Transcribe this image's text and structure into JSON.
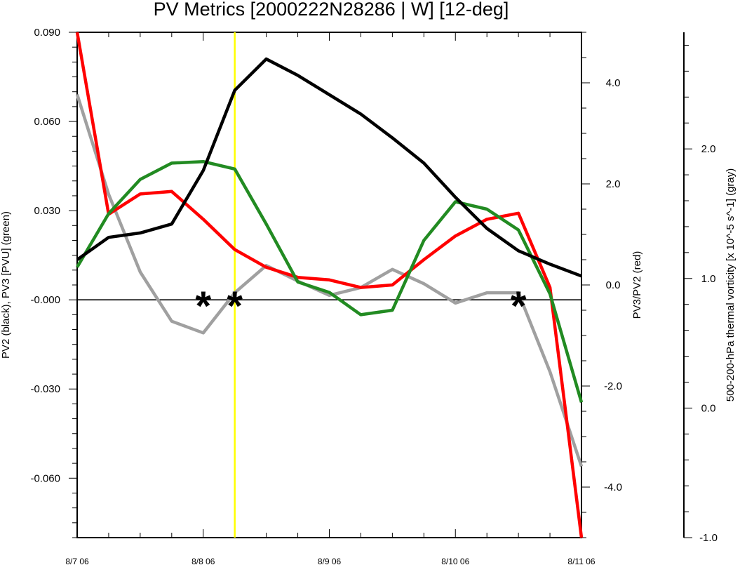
{
  "chart_data": {
    "type": "line",
    "title": "PV Metrics [2000222N28286 | W] [12-deg]",
    "x": [
      "8/7 06",
      "8/7 12",
      "8/7 18",
      "8/8 00",
      "8/8 06",
      "8/8 12",
      "8/8 18",
      "8/9 00",
      "8/9 06",
      "8/9 12",
      "8/9 18",
      "8/10 00",
      "8/10 06",
      "8/10 12",
      "8/10 18",
      "8/11 00",
      "8/11 06"
    ],
    "x_tick_labels": [
      "8/7 06",
      "8/8 06",
      "8/9 06",
      "8/10 06",
      "8/11 06"
    ],
    "y_left": {
      "label": "PV2 (black), PV3 [PVU] (green)",
      "range": [
        -0.08,
        0.09
      ],
      "ticks": [
        "0.090",
        "0.060",
        "0.030",
        "-0.000",
        "-0.030",
        "-0.060"
      ]
    },
    "y_right1": {
      "label": "PV3/PV2 (red)",
      "range": [
        -5.0,
        5.0
      ],
      "ticks": [
        "4.0",
        "2.0",
        "0.0",
        "-2.0",
        "-4.0"
      ]
    },
    "y_right2": {
      "label": "500-200-hPa thermal vorticity [x 10^-5 s^-1] (gray)",
      "range": [
        -1.0,
        2.9
      ],
      "ticks": [
        "2.0",
        "1.0",
        "0.0",
        "-1.0"
      ]
    },
    "series": [
      {
        "color": "#000000",
        "axis": "left",
        "values": [
          0.0135,
          0.021,
          0.0225,
          0.0255,
          0.0435,
          0.0705,
          0.081,
          0.0755,
          0.069,
          0.0625,
          0.0545,
          0.046,
          0.0345,
          0.024,
          0.0165,
          0.012,
          0.008
        ]
      },
      {
        "color": "#228b22",
        "axis": "left",
        "values": [
          0.011,
          0.029,
          0.0405,
          0.046,
          0.0465,
          0.044,
          0.0255,
          0.006,
          0.0025,
          -0.005,
          -0.0035,
          0.02,
          0.033,
          0.0305,
          0.0235,
          0.002,
          -0.0345
        ]
      },
      {
        "color": "#ff0000",
        "axis": "right1",
        "values": [
          5.0,
          1.4,
          1.8,
          1.85,
          1.3,
          0.7,
          0.35,
          0.15,
          0.1,
          -0.05,
          0.0,
          0.5,
          0.97,
          1.3,
          1.42,
          -0.05,
          -5.0
        ]
      },
      {
        "color": "#a0a0a0",
        "axis": "right2",
        "values": [
          2.42,
          1.65,
          1.05,
          0.67,
          0.58,
          0.89,
          1.1,
          0.98,
          0.87,
          0.93,
          1.07,
          0.96,
          0.81,
          0.89,
          0.89,
          0.28,
          -0.45
        ]
      }
    ],
    "markers": {
      "symbol": "*",
      "x_indices": [
        4,
        5,
        14
      ],
      "y_value": 0.0
    },
    "vertical_line": {
      "x_index": 5,
      "color": "#ffff00"
    },
    "zero_line": 0.0,
    "grid": false,
    "legend": "none"
  }
}
